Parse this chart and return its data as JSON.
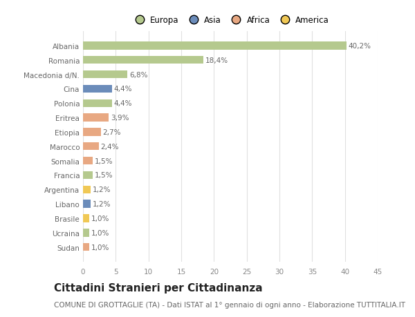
{
  "categories": [
    "Albania",
    "Romania",
    "Macedonia d/N.",
    "Cina",
    "Polonia",
    "Eritrea",
    "Etiopia",
    "Marocco",
    "Somalia",
    "Francia",
    "Argentina",
    "Libano",
    "Brasile",
    "Ucraina",
    "Sudan"
  ],
  "values": [
    40.2,
    18.4,
    6.8,
    4.4,
    4.4,
    3.9,
    2.7,
    2.4,
    1.5,
    1.5,
    1.2,
    1.2,
    1.0,
    1.0,
    1.0
  ],
  "labels": [
    "40,2%",
    "18,4%",
    "6,8%",
    "4,4%",
    "4,4%",
    "3,9%",
    "2,7%",
    "2,4%",
    "1,5%",
    "1,5%",
    "1,2%",
    "1,2%",
    "1,0%",
    "1,0%",
    "1,0%"
  ],
  "colors": [
    "#b5c98e",
    "#b5c98e",
    "#b5c98e",
    "#6b8cba",
    "#b5c98e",
    "#e8a882",
    "#e8a882",
    "#e8a882",
    "#e8a882",
    "#b5c98e",
    "#f0c855",
    "#6b8cba",
    "#f0c855",
    "#b5c98e",
    "#e8a882"
  ],
  "legend_labels": [
    "Europa",
    "Asia",
    "Africa",
    "America"
  ],
  "legend_colors": [
    "#b5c98e",
    "#6b8cba",
    "#e8a882",
    "#f0c855"
  ],
  "title": "Cittadini Stranieri per Cittadinanza",
  "subtitle": "COMUNE DI GROTTAGLIE (TA) - Dati ISTAT al 1° gennaio di ogni anno - Elaborazione TUTTITALIA.IT",
  "xlim": [
    0,
    45
  ],
  "xticks": [
    0,
    5,
    10,
    15,
    20,
    25,
    30,
    35,
    40,
    45
  ],
  "background_color": "#ffffff",
  "plot_bg_color": "#ffffff",
  "grid_color": "#e0e0e0",
  "bar_height": 0.55,
  "label_fontsize": 7.5,
  "tick_fontsize": 7.5,
  "legend_fontsize": 8.5,
  "title_fontsize": 11,
  "subtitle_fontsize": 7.5,
  "label_color": "#666666",
  "tick_color": "#888888"
}
